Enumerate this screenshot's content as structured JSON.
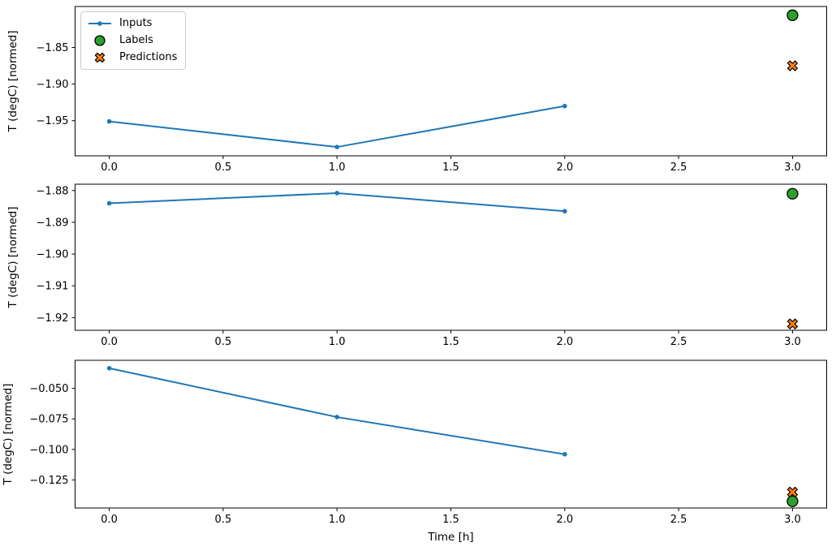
{
  "figure": {
    "background": "#ffffff",
    "xlabel": "Time [h]",
    "ylabel": "T (degC) [normed]"
  },
  "colors": {
    "figure_bg": "#ffffff",
    "inputs_line": "#1f77b4",
    "labels_marker": "#2ca02c",
    "predictions_marker": "#ff7f0e",
    "marker_edge": "#000000",
    "legend_border": "#cccccc",
    "axis": "#000000"
  },
  "legend": {
    "position": "upper-left-subplot-1",
    "items": [
      {
        "label": "Inputs",
        "marker": "line-with-dot"
      },
      {
        "label": "Labels",
        "marker": "filled-circle"
      },
      {
        "label": "Predictions",
        "marker": "filled-x"
      }
    ]
  },
  "chart_data": [
    {
      "type": "line",
      "subplot": 1,
      "ylabel": "T (degC) [normed]",
      "xlabel": "",
      "grid": false,
      "xlim": [
        -0.15,
        3.15
      ],
      "ylim": [
        -1.998,
        -1.794
      ],
      "xticks": [
        {
          "value": 0.0,
          "label": "0.0"
        },
        {
          "value": 0.5,
          "label": "0.5"
        },
        {
          "value": 1.0,
          "label": "1.0"
        },
        {
          "value": 1.5,
          "label": "1.5"
        },
        {
          "value": 2.0,
          "label": "2.0"
        },
        {
          "value": 2.5,
          "label": "2.5"
        },
        {
          "value": 3.0,
          "label": "3.0"
        }
      ],
      "yticks": [
        {
          "value": -1.85,
          "label": "−1.85"
        },
        {
          "value": -1.9,
          "label": "−1.90"
        },
        {
          "value": -1.95,
          "label": "−1.95"
        }
      ],
      "series": [
        {
          "name": "Inputs",
          "style": "line-dot",
          "x": [
            0,
            1,
            2
          ],
          "y": [
            -1.951,
            -1.986,
            -1.93
          ]
        },
        {
          "name": "Labels",
          "style": "circle",
          "x": [
            3
          ],
          "y": [
            -1.806
          ]
        },
        {
          "name": "Predictions",
          "style": "x",
          "x": [
            3
          ],
          "y": [
            -1.875
          ]
        }
      ]
    },
    {
      "type": "line",
      "subplot": 2,
      "ylabel": "T (degC) [normed]",
      "xlabel": "",
      "grid": false,
      "xlim": [
        -0.15,
        3.15
      ],
      "ylim": [
        -1.924,
        -1.878
      ],
      "xticks": [
        {
          "value": 0.0,
          "label": "0.0"
        },
        {
          "value": 0.5,
          "label": "0.5"
        },
        {
          "value": 1.0,
          "label": "1.0"
        },
        {
          "value": 1.5,
          "label": "1.5"
        },
        {
          "value": 2.0,
          "label": "2.0"
        },
        {
          "value": 2.5,
          "label": "2.5"
        },
        {
          "value": 3.0,
          "label": "3.0"
        }
      ],
      "yticks": [
        {
          "value": -1.88,
          "label": "−1.88"
        },
        {
          "value": -1.89,
          "label": "−1.89"
        },
        {
          "value": -1.9,
          "label": "−1.90"
        },
        {
          "value": -1.91,
          "label": "−1.91"
        },
        {
          "value": -1.92,
          "label": "−1.92"
        }
      ],
      "series": [
        {
          "name": "Inputs",
          "style": "line-dot",
          "x": [
            0,
            1,
            2
          ],
          "y": [
            -1.884,
            -1.8808,
            -1.8865
          ]
        },
        {
          "name": "Labels",
          "style": "circle",
          "x": [
            3
          ],
          "y": [
            -1.881
          ]
        },
        {
          "name": "Predictions",
          "style": "x",
          "x": [
            3
          ],
          "y": [
            -1.922
          ]
        }
      ]
    },
    {
      "type": "line",
      "subplot": 3,
      "ylabel": "T (degC) [normed]",
      "xlabel": "Time [h]",
      "grid": false,
      "xlim": [
        -0.15,
        3.15
      ],
      "ylim": [
        -0.148,
        -0.027
      ],
      "xticks": [
        {
          "value": 0.0,
          "label": "0.0"
        },
        {
          "value": 0.5,
          "label": "0.5"
        },
        {
          "value": 1.0,
          "label": "1.0"
        },
        {
          "value": 1.5,
          "label": "1.5"
        },
        {
          "value": 2.0,
          "label": "2.0"
        },
        {
          "value": 2.5,
          "label": "2.5"
        },
        {
          "value": 3.0,
          "label": "3.0"
        }
      ],
      "yticks": [
        {
          "value": -0.05,
          "label": "−0.050"
        },
        {
          "value": -0.075,
          "label": "−0.075"
        },
        {
          "value": -0.1,
          "label": "−0.100"
        },
        {
          "value": -0.125,
          "label": "−0.125"
        }
      ],
      "series": [
        {
          "name": "Inputs",
          "style": "line-dot",
          "x": [
            0,
            1,
            2
          ],
          "y": [
            -0.0335,
            -0.0735,
            -0.104
          ]
        },
        {
          "name": "Labels",
          "style": "circle",
          "x": [
            3
          ],
          "y": [
            -0.1425
          ]
        },
        {
          "name": "Predictions",
          "style": "x",
          "x": [
            3
          ],
          "y": [
            -0.135
          ]
        }
      ]
    }
  ]
}
